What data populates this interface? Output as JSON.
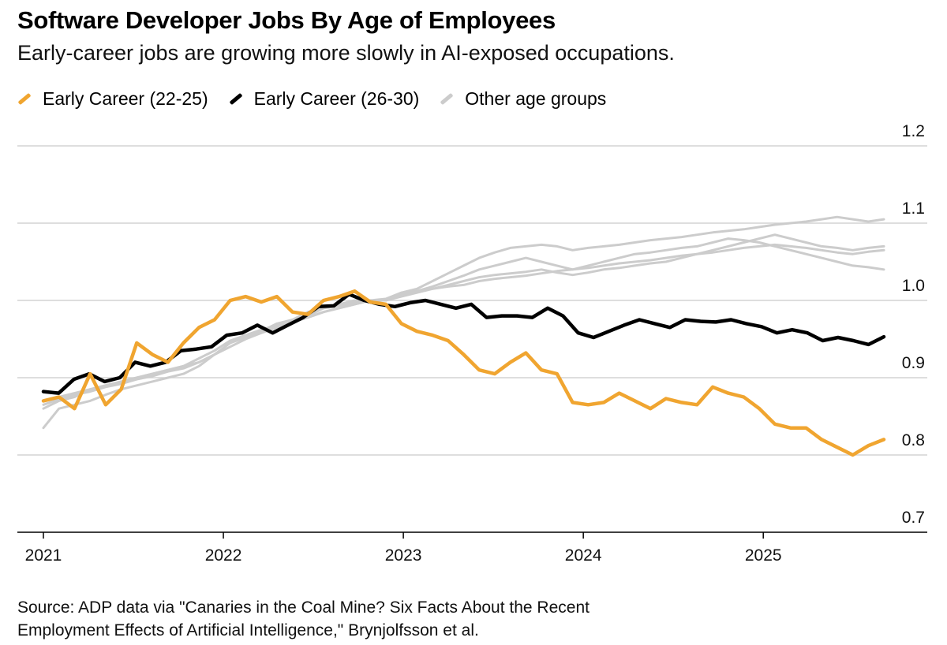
{
  "chart_data": {
    "type": "line",
    "title": "Software Developer Jobs By Age of Employees",
    "subtitle": "Early-career jobs are growing more slowly in AI-exposed occupations.",
    "legend": [
      {
        "name": "Early Career (22-25)",
        "color": "#f0a530"
      },
      {
        "name": "Early Career (26-30)",
        "color": "#000000"
      },
      {
        "name": "Other age groups",
        "color": "#cccccc"
      }
    ],
    "y_ticks": [
      "1.2",
      "1.1",
      "1.0",
      "0.9",
      "0.8",
      "0.7"
    ],
    "y_tick_values": [
      1.2,
      1.1,
      1.0,
      0.9,
      0.8,
      0.7
    ],
    "ylim": [
      0.7,
      1.2
    ],
    "x_ticks": [
      "2021",
      "2022",
      "2023",
      "2024",
      "2025"
    ],
    "x_tick_values": [
      2021,
      2022,
      2023,
      2024,
      2025
    ],
    "xlim": [
      2021,
      2025.67
    ],
    "series": [
      {
        "name": "Other age groups 1",
        "group": "other",
        "color": "#cccccc",
        "values": [
          0.835,
          0.86,
          0.865,
          0.87,
          0.878,
          0.885,
          0.89,
          0.895,
          0.9,
          0.905,
          0.915,
          0.93,
          0.945,
          0.955,
          0.962,
          0.968,
          0.975,
          0.98,
          0.99,
          0.993,
          0.998,
          1.0,
          1.0,
          1.01,
          1.012,
          1.015,
          1.018,
          1.02,
          1.025,
          1.028,
          1.03,
          1.032,
          1.035,
          1.038,
          1.04,
          1.042,
          1.045,
          1.048,
          1.05,
          1.052,
          1.055,
          1.058,
          1.06,
          1.062,
          1.065,
          1.068,
          1.07,
          1.072,
          1.07,
          1.068,
          1.065,
          1.062,
          1.06,
          1.063,
          1.065
        ]
      },
      {
        "name": "Other age groups 2",
        "group": "other",
        "color": "#cccccc",
        "values": [
          0.86,
          0.87,
          0.875,
          0.885,
          0.89,
          0.895,
          0.9,
          0.905,
          0.91,
          0.915,
          0.925,
          0.935,
          0.948,
          0.955,
          0.96,
          0.97,
          0.975,
          0.985,
          0.99,
          0.995,
          1.0,
          1.0,
          1.002,
          1.01,
          1.015,
          1.025,
          1.035,
          1.045,
          1.055,
          1.062,
          1.068,
          1.07,
          1.072,
          1.07,
          1.065,
          1.068,
          1.07,
          1.072,
          1.075,
          1.078,
          1.08,
          1.082,
          1.085,
          1.088,
          1.09,
          1.092,
          1.095,
          1.098,
          1.1,
          1.102,
          1.105,
          1.108,
          1.105,
          1.102,
          1.105
        ]
      },
      {
        "name": "Other age groups 3",
        "group": "other",
        "color": "#cccccc",
        "values": [
          0.865,
          0.872,
          0.878,
          0.882,
          0.888,
          0.892,
          0.898,
          0.902,
          0.908,
          0.912,
          0.92,
          0.93,
          0.94,
          0.95,
          0.958,
          0.965,
          0.972,
          0.978,
          0.985,
          0.99,
          0.995,
          1.0,
          1.0,
          1.008,
          1.012,
          1.018,
          1.025,
          1.032,
          1.04,
          1.045,
          1.05,
          1.055,
          1.05,
          1.045,
          1.04,
          1.045,
          1.05,
          1.055,
          1.06,
          1.062,
          1.065,
          1.068,
          1.07,
          1.075,
          1.08,
          1.078,
          1.075,
          1.07,
          1.065,
          1.06,
          1.055,
          1.05,
          1.045,
          1.043,
          1.04
        ]
      },
      {
        "name": "Other age groups 4",
        "group": "other",
        "color": "#cccccc",
        "values": [
          0.87,
          0.875,
          0.88,
          0.885,
          0.89,
          0.895,
          0.9,
          0.905,
          0.91,
          0.915,
          0.92,
          0.93,
          0.945,
          0.952,
          0.958,
          0.965,
          0.972,
          0.978,
          0.985,
          0.99,
          0.995,
          1.0,
          1.0,
          1.005,
          1.01,
          1.015,
          1.02,
          1.025,
          1.03,
          1.033,
          1.035,
          1.037,
          1.04,
          1.036,
          1.033,
          1.036,
          1.04,
          1.042,
          1.045,
          1.048,
          1.05,
          1.055,
          1.06,
          1.065,
          1.07,
          1.075,
          1.08,
          1.085,
          1.08,
          1.075,
          1.07,
          1.068,
          1.065,
          1.068,
          1.07
        ]
      },
      {
        "name": "Early Career (26-30)",
        "group": "black",
        "color": "#000000",
        "values": [
          0.882,
          0.88,
          0.898,
          0.905,
          0.895,
          0.9,
          0.92,
          0.915,
          0.92,
          0.935,
          0.937,
          0.94,
          0.955,
          0.958,
          0.968,
          0.958,
          0.968,
          0.978,
          0.992,
          0.993,
          1.008,
          1.0,
          0.995,
          0.992,
          0.997,
          1.0,
          0.995,
          0.99,
          0.995,
          0.978,
          0.98,
          0.98,
          0.978,
          0.99,
          0.98,
          0.958,
          0.952,
          0.96,
          0.968,
          0.975,
          0.97,
          0.965,
          0.975,
          0.973,
          0.972,
          0.975,
          0.97,
          0.966,
          0.958,
          0.962,
          0.958,
          0.948,
          0.952,
          0.948,
          0.943,
          0.953
        ]
      },
      {
        "name": "Early Career (22-25)",
        "group": "orange",
        "color": "#f0a530",
        "values": [
          0.87,
          0.875,
          0.86,
          0.905,
          0.865,
          0.885,
          0.945,
          0.93,
          0.92,
          0.945,
          0.965,
          0.975,
          1.0,
          1.005,
          0.998,
          1.005,
          0.985,
          0.982,
          1.0,
          1.005,
          1.012,
          0.998,
          0.995,
          0.97,
          0.96,
          0.955,
          0.948,
          0.93,
          0.91,
          0.905,
          0.92,
          0.932,
          0.91,
          0.905,
          0.868,
          0.865,
          0.868,
          0.88,
          0.87,
          0.86,
          0.873,
          0.868,
          0.865,
          0.888,
          0.88,
          0.875,
          0.86,
          0.84,
          0.835,
          0.835,
          0.82,
          0.81,
          0.8,
          0.812,
          0.82
        ]
      }
    ]
  },
  "source": {
    "line1": "Source: ADP data via \"Canaries in the Coal Mine? Six Facts About the Recent",
    "line2": "Employment Effects of Artificial Intelligence,\" Brynjolfsson et al."
  }
}
